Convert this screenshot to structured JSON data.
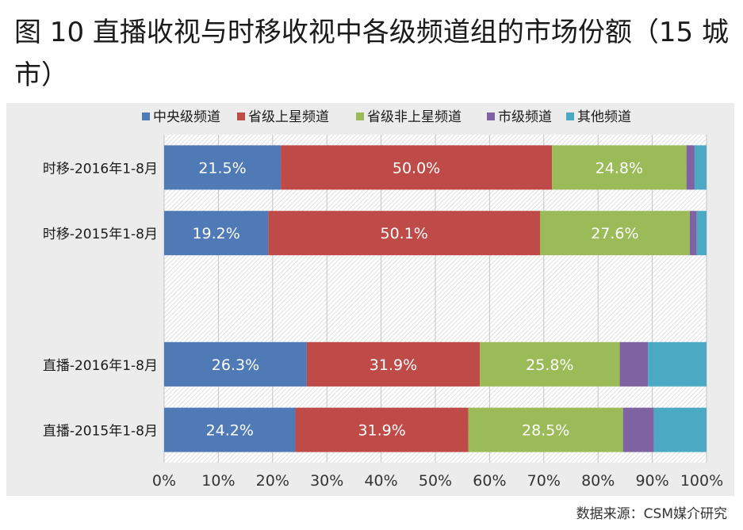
{
  "title": "图 10 直播收视与时移收视中各级频道组的市场份额（15 城市）",
  "source": "数据来源：CSM媒介研究",
  "chart_data": {
    "type": "bar",
    "orientation": "horizontal",
    "stacked": true,
    "normalized": true,
    "categories": [
      "时移-2016年1-8月",
      "时移-2015年1-8月",
      "",
      "直播-2016年1-8月",
      "直播-2015年1-8月"
    ],
    "series": [
      {
        "name": "中央级频道",
        "color": "#4f7ab5",
        "values": [
          21.5,
          19.2,
          null,
          26.3,
          24.2
        ],
        "labels": [
          "21.5%",
          "19.2%",
          "",
          "26.3%",
          "24.2%"
        ]
      },
      {
        "name": "省级上星频道",
        "color": "#bf4b48",
        "values": [
          50.0,
          50.1,
          null,
          31.9,
          31.9
        ],
        "labels": [
          "50.0%",
          "50.1%",
          "",
          "31.9%",
          "31.9%"
        ]
      },
      {
        "name": "省级非上星频道",
        "color": "#9bbb59",
        "values": [
          24.8,
          27.6,
          null,
          25.8,
          28.5
        ],
        "labels": [
          "24.8%",
          "27.6%",
          "",
          "25.8%",
          "28.5%"
        ]
      },
      {
        "name": "市级频道",
        "color": "#7e62a1",
        "values": [
          1.5,
          1.3,
          null,
          5.2,
          5.7
        ],
        "labels": [
          "",
          "",
          "",
          "",
          ""
        ]
      },
      {
        "name": "其他频道",
        "color": "#4ba9c3",
        "values": [
          2.2,
          1.8,
          null,
          10.8,
          9.7
        ],
        "labels": [
          "",
          "",
          "",
          "",
          ""
        ]
      }
    ],
    "x_ticks": [
      "0%",
      "10%",
      "20%",
      "30%",
      "40%",
      "50%",
      "60%",
      "70%",
      "80%",
      "90%",
      "100%"
    ],
    "xlim": [
      0,
      100
    ],
    "grid": true,
    "legend_position": "top"
  }
}
